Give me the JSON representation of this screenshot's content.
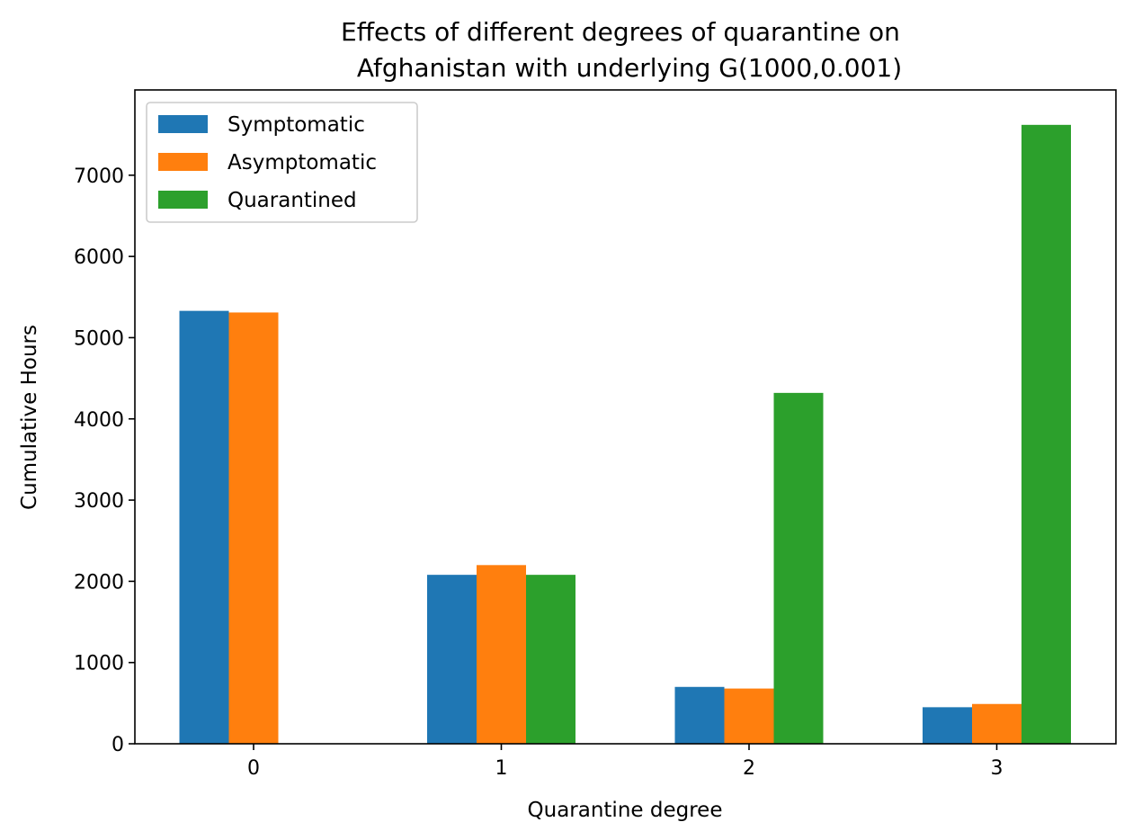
{
  "chart_data": {
    "type": "bar",
    "title_line1": "Effects of different degrees of quarantine on",
    "title_line2": "Afghanistan with underlying G(1000,0.001)",
    "xlabel": "Quarantine degree",
    "ylabel": "Cumulative Hours",
    "categories": [
      "0",
      "1",
      "2",
      "3"
    ],
    "ylim": [
      0,
      8050
    ],
    "yticks": [
      0,
      1000,
      2000,
      3000,
      4000,
      5000,
      6000,
      7000
    ],
    "legend_position": "top-left",
    "grid": false,
    "series": [
      {
        "name": "Symptomatic",
        "color": "#1f77b4",
        "values": [
          5330,
          2080,
          700,
          450
        ]
      },
      {
        "name": "Asymptomatic",
        "color": "#ff7f0e",
        "values": [
          5310,
          2200,
          680,
          490
        ]
      },
      {
        "name": "Quarantined",
        "color": "#2ca02c",
        "values": [
          0,
          2080,
          4320,
          7620
        ]
      }
    ]
  }
}
